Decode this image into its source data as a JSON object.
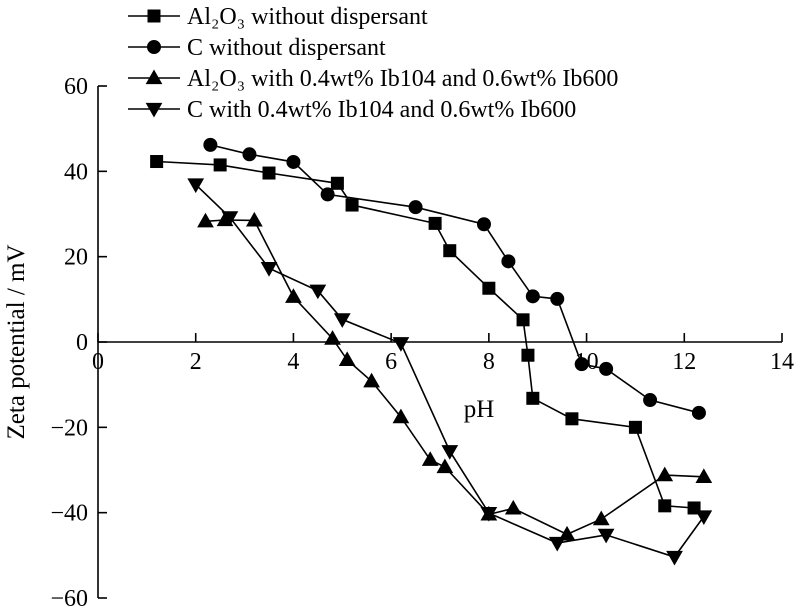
{
  "chart_data": {
    "type": "line",
    "xlabel": "pH",
    "ylabel": "Zeta potential / mV",
    "xlim": [
      0,
      14
    ],
    "ylim": [
      -60,
      60
    ],
    "xticks": [
      "0",
      "2",
      "4",
      "6",
      "8",
      "10",
      "12",
      "14"
    ],
    "yticks": [
      "60",
      "40",
      "20",
      "0",
      "−20",
      "−40",
      "−60"
    ],
    "grid": false,
    "legend_position": "top",
    "series": [
      {
        "name": "Al₂O₃ without dispersant",
        "marker": "square",
        "x": [
          1.2,
          2.5,
          3.5,
          4.9,
          5.2,
          6.9,
          7.2,
          8.0,
          8.7,
          8.8,
          8.9,
          9.7,
          11.0,
          11.6,
          12.2
        ],
        "y": [
          42.3,
          41.5,
          39.6,
          37.2,
          32.1,
          27.8,
          21.4,
          12.6,
          5.2,
          -3.1,
          -13.2,
          -18.0,
          -20.0,
          -38.4,
          -38.9
        ]
      },
      {
        "name": "C without dispersant",
        "marker": "circle",
        "x": [
          2.3,
          3.1,
          4.0,
          4.7,
          6.5,
          7.9,
          8.4,
          8.9,
          9.4,
          9.9,
          10.4,
          11.3,
          12.3
        ],
        "y": [
          46.2,
          44.0,
          42.2,
          34.6,
          31.6,
          27.6,
          18.9,
          10.7,
          10.1,
          -5.2,
          -6.3,
          -13.6,
          -16.6
        ]
      },
      {
        "name": "Al₂O₃ with 0.4wt% Ib104 and 0.6wt% Ib600",
        "marker": "triangle-up",
        "x": [
          2.2,
          2.6,
          3.2,
          4.0,
          4.8,
          5.1,
          5.6,
          6.2,
          6.8,
          7.1,
          8.0,
          8.5,
          9.6,
          10.3,
          11.6,
          12.4
        ],
        "y": [
          28.3,
          28.6,
          28.5,
          10.6,
          0.8,
          -4.2,
          -9.2,
          -17.6,
          -27.6,
          -29.3,
          -40.4,
          -39.0,
          -45.1,
          -41.5,
          -31.2,
          -31.6
        ]
      },
      {
        "name": "C with 0.4wt% Ib104 and 0.6wt% Ib600",
        "marker": "triangle-down",
        "x": [
          2.0,
          2.7,
          3.5,
          4.5,
          5.0,
          6.2,
          7.2,
          8.0,
          9.4,
          10.4,
          11.8,
          12.4
        ],
        "y": [
          36.9,
          29.2,
          17.3,
          12.0,
          5.3,
          -0.3,
          -25.6,
          -40.1,
          -47.1,
          -45.2,
          -50.4,
          -40.9
        ]
      }
    ]
  }
}
